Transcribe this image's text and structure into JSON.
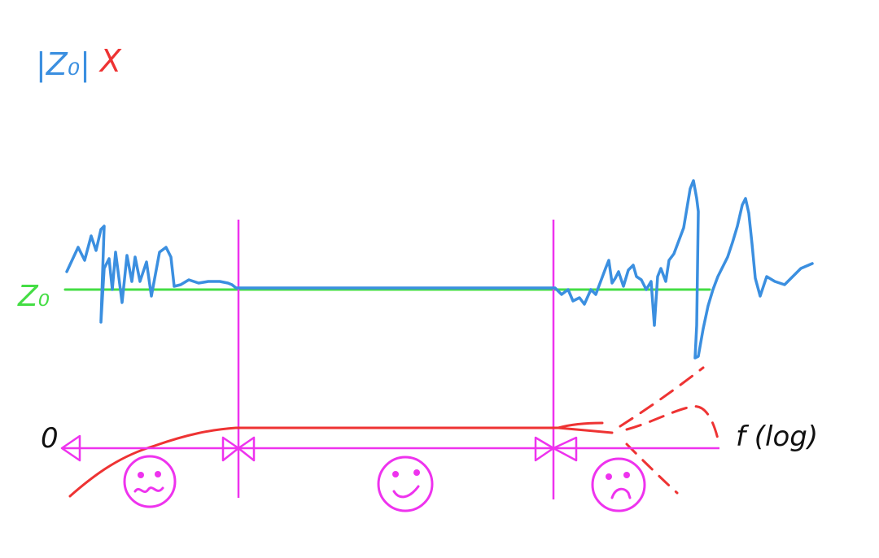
{
  "title": {
    "quantity": "|Z₀|",
    "mark": "X"
  },
  "labels": {
    "reference_level": "Z₀",
    "origin": "0",
    "frequency_axis": "f (log)"
  },
  "regions": [
    {
      "name": "low-frequency",
      "mood": "worried"
    },
    {
      "name": "mid-band",
      "mood": "happy"
    },
    {
      "name": "high-frequency",
      "mood": "sad"
    }
  ],
  "colors": {
    "impedance_trace": "#3b8fe0",
    "reference_line": "#44dd44",
    "response_curve": "#ee3333",
    "axis_and_markers": "#ee33ee",
    "origin_label": "#111111",
    "title_mark": "#ee3333"
  }
}
